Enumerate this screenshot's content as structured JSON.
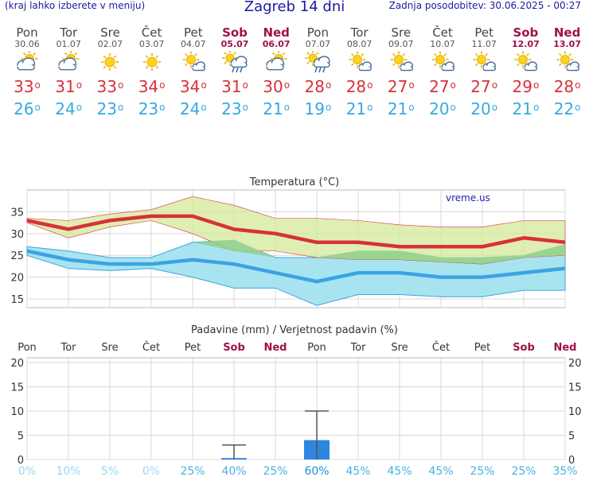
{
  "header": {
    "left_note": "(kraj lahko izberete v meniju)",
    "title": "Zagreb 14 dni",
    "updated": "Zadnja posodobitev: 30.06.2025 - 00:27"
  },
  "days": [
    {
      "name": "Pon",
      "date": "30.06",
      "weekend": false,
      "icon": "partly-cloudy-icon",
      "tmax": "33",
      "tmin": "26"
    },
    {
      "name": "Tor",
      "date": "01.07",
      "weekend": false,
      "icon": "partly-cloudy-icon",
      "tmax": "31",
      "tmin": "24"
    },
    {
      "name": "Sre",
      "date": "02.07",
      "weekend": false,
      "icon": "sun-icon",
      "tmax": "33",
      "tmin": "23"
    },
    {
      "name": "Čet",
      "date": "03.07",
      "weekend": false,
      "icon": "sun-icon",
      "tmax": "34",
      "tmin": "23"
    },
    {
      "name": "Pet",
      "date": "04.07",
      "weekend": false,
      "icon": "sun-small-cloud-icon",
      "tmax": "34",
      "tmin": "24"
    },
    {
      "name": "Sob",
      "date": "05.07",
      "weekend": true,
      "icon": "sun-cloud-rain-icon",
      "tmax": "31",
      "tmin": "23"
    },
    {
      "name": "Ned",
      "date": "06.07",
      "weekend": true,
      "icon": "partly-cloudy-icon",
      "tmax": "30",
      "tmin": "21"
    },
    {
      "name": "Pon",
      "date": "07.07",
      "weekend": false,
      "icon": "sun-cloud-rain-icon",
      "tmax": "28",
      "tmin": "19"
    },
    {
      "name": "Tor",
      "date": "08.07",
      "weekend": false,
      "icon": "sun-small-cloud-icon",
      "tmax": "28",
      "tmin": "21"
    },
    {
      "name": "Sre",
      "date": "09.07",
      "weekend": false,
      "icon": "sun-small-cloud-icon",
      "tmax": "27",
      "tmin": "21"
    },
    {
      "name": "Čet",
      "date": "10.07",
      "weekend": false,
      "icon": "sun-small-cloud-icon",
      "tmax": "27",
      "tmin": "20"
    },
    {
      "name": "Pet",
      "date": "11.07",
      "weekend": false,
      "icon": "sun-small-cloud-icon",
      "tmax": "27",
      "tmin": "20"
    },
    {
      "name": "Sob",
      "date": "12.07",
      "weekend": true,
      "icon": "sun-small-cloud-icon",
      "tmax": "29",
      "tmin": "21"
    },
    {
      "name": "Ned",
      "date": "13.07",
      "weekend": true,
      "icon": "sun-small-cloud-icon",
      "tmax": "28",
      "tmin": "22"
    }
  ],
  "colors": {
    "tmax_line": "#d8303a",
    "tmin_line": "#3aa3e3",
    "max_band": "#d4e89a",
    "min_band": "#a8e4f0",
    "overlap_band": "#8fd08a",
    "precip_bar": "#2f86e0",
    "weekend": "#a0104a"
  },
  "chart_data": [
    {
      "type": "line",
      "title": "Temperatura (°C)",
      "watermark": "vreme.us",
      "x": [
        "30.06",
        "01.07",
        "02.07",
        "03.07",
        "04.07",
        "05.07",
        "06.07",
        "07.07",
        "08.07",
        "09.07",
        "10.07",
        "11.07",
        "12.07",
        "13.07"
      ],
      "ylim": [
        13,
        40
      ],
      "yticks": [
        "15",
        "20",
        "25",
        "30",
        "35"
      ],
      "grid": true,
      "series": [
        {
          "values": [
            33,
            31,
            33,
            34,
            34,
            31,
            30,
            28,
            28,
            27,
            27,
            27,
            29,
            28
          ]
        },
        {
          "values": [
            26,
            24,
            23,
            23,
            24,
            23,
            21,
            19,
            21,
            21,
            20,
            20,
            21,
            22
          ]
        }
      ],
      "bands": [
        {
          "upper": [
            33.5,
            33,
            34.5,
            35.5,
            38.5,
            36.5,
            33.5,
            33.5,
            33,
            32,
            31.5,
            31.5,
            33,
            33
          ],
          "lower": [
            32.5,
            29,
            31.5,
            33,
            30,
            26,
            26,
            24.5,
            24,
            24,
            23.5,
            23,
            24.5,
            25
          ]
        },
        {
          "upper": [
            27,
            26,
            24.5,
            24.5,
            28,
            28.5,
            24.5,
            24.5,
            26,
            26,
            24.5,
            24.5,
            25,
            27.5
          ],
          "lower": [
            25,
            22,
            21.5,
            22,
            20,
            17.5,
            17.5,
            13.5,
            16,
            16,
            15.5,
            15.5,
            17,
            17
          ]
        }
      ]
    },
    {
      "type": "bar",
      "title": "Padavine (mm) / Verjetnost padavin (%)",
      "x": [
        "Pon",
        "Tor",
        "Sre",
        "Čet",
        "Pet",
        "Sob",
        "Ned",
        "Pon",
        "Tor",
        "Sre",
        "Čet",
        "Pet",
        "Sob",
        "Ned"
      ],
      "ylim": [
        0,
        21
      ],
      "yticks": [
        "0",
        "5",
        "10",
        "15",
        "20"
      ],
      "values": [
        0,
        0,
        0,
        0,
        0,
        0.3,
        0,
        4,
        0,
        0,
        0,
        0,
        0,
        0
      ],
      "range_max": [
        0,
        0,
        0,
        0,
        0,
        3,
        0,
        10,
        0,
        0,
        0,
        0,
        0,
        0
      ],
      "probability_percent": [
        "0%",
        "10%",
        "5%",
        "0%",
        "25%",
        "40%",
        "25%",
        "60%",
        "45%",
        "45%",
        "45%",
        "25%",
        "25%",
        "35%"
      ]
    }
  ]
}
